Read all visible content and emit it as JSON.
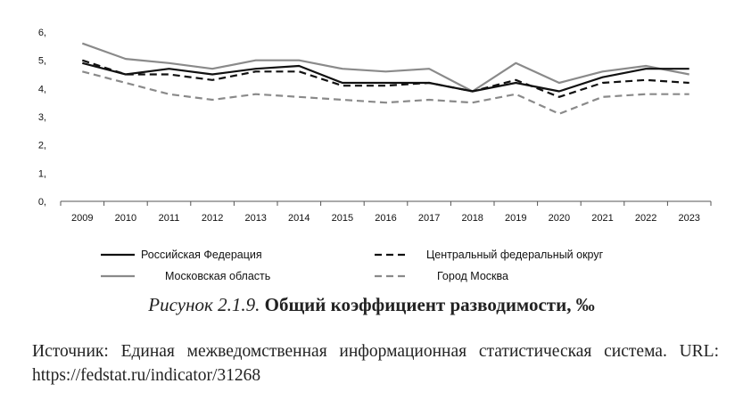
{
  "chart_data": {
    "type": "line",
    "x": [
      "2009",
      "2010",
      "2011",
      "2012",
      "2013",
      "2014",
      "2015",
      "2016",
      "2017",
      "2018",
      "2019",
      "2020",
      "2021",
      "2022",
      "2023"
    ],
    "y_ticks": [
      "0,",
      "1,",
      "2,",
      "3,",
      "4,",
      "5,",
      "6,"
    ],
    "ylim": [
      0,
      6
    ],
    "grid": false,
    "legend_position": "bottom",
    "series": [
      {
        "name": "Российская Федерация",
        "style": "solid",
        "color": "#111111",
        "values": [
          4.9,
          4.5,
          4.7,
          4.5,
          4.7,
          4.8,
          4.2,
          4.2,
          4.2,
          3.9,
          4.2,
          3.9,
          4.4,
          4.7,
          4.7
        ]
      },
      {
        "name": "Центральный федеральный округ",
        "style": "dashed",
        "color": "#111111",
        "values": [
          5.0,
          4.5,
          4.5,
          4.3,
          4.6,
          4.6,
          4.1,
          4.1,
          4.2,
          3.9,
          4.3,
          3.7,
          4.2,
          4.3,
          4.2
        ]
      },
      {
        "name": "Московская область",
        "style": "solid",
        "color": "#8a8a8a",
        "values": [
          5.6,
          5.05,
          4.9,
          4.7,
          5.0,
          5.0,
          4.7,
          4.6,
          4.7,
          3.9,
          4.9,
          4.2,
          4.6,
          4.8,
          4.5
        ]
      },
      {
        "name": "Город Москва",
        "style": "dashed",
        "color": "#8a8a8a",
        "values": [
          4.6,
          4.2,
          3.8,
          3.6,
          3.8,
          3.7,
          3.6,
          3.5,
          3.6,
          3.5,
          3.8,
          3.1,
          3.7,
          3.8,
          3.8
        ]
      }
    ]
  },
  "caption": {
    "label": "Рисунок 2.1.9.",
    "title": "Общий коэффициент разводимости, ‰"
  },
  "source": {
    "text": "Источник: Единая межведомственная информационная статистическая система. URL: https://fedstat.ru/indicator/31268"
  }
}
